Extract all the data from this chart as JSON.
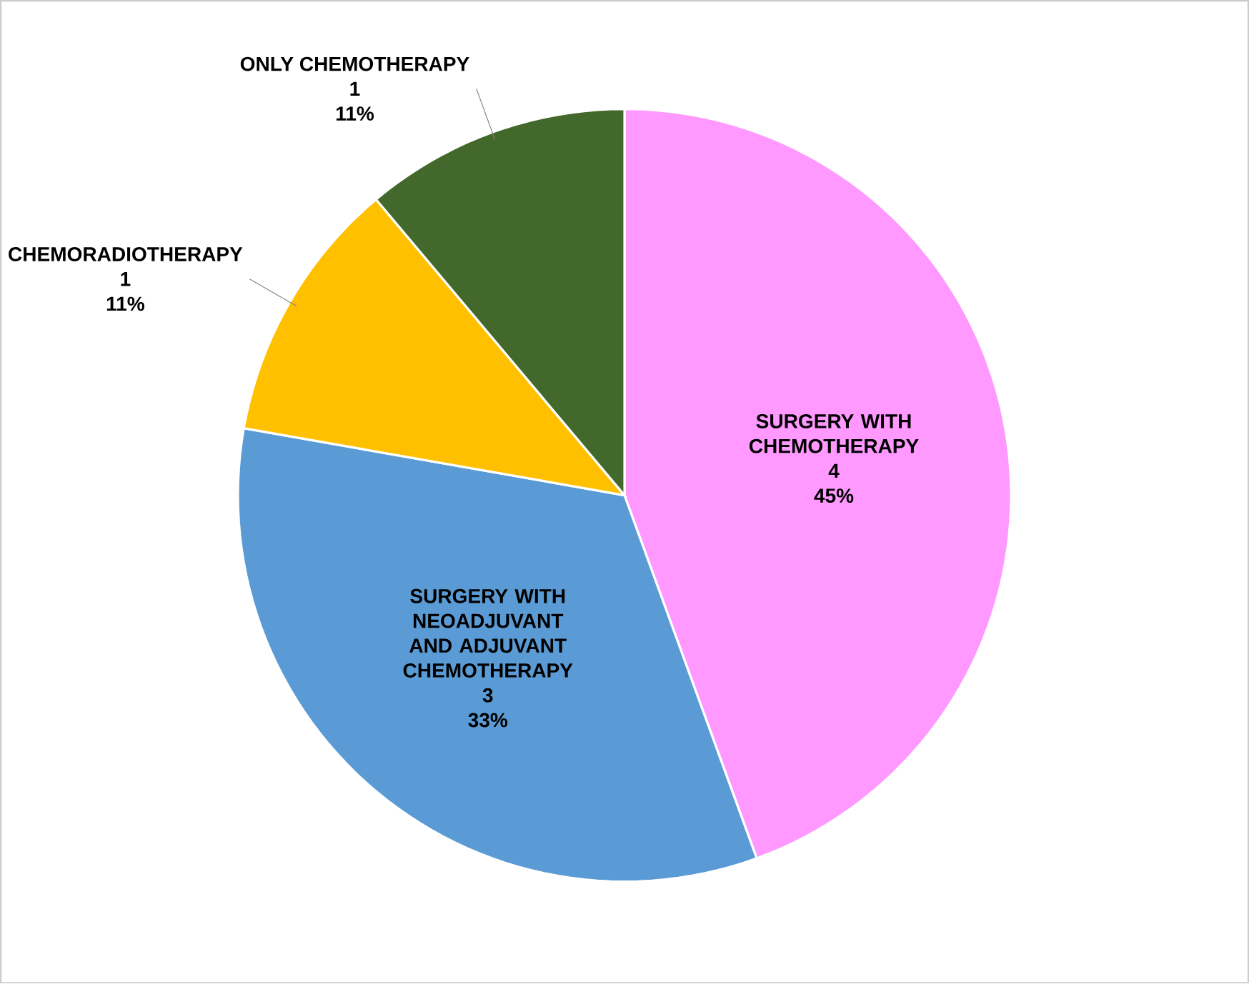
{
  "chart_data": {
    "type": "pie",
    "categories": [
      "SURGERY WITH CHEMOTHERAPY",
      "SURGERY WITH NEOADJUVANT AND ADJUVANT CHEMOTHERAPY",
      "CHEMORADIOTHERAPY",
      "ONLY CHEMOTHERAPY"
    ],
    "values": [
      4,
      3,
      1,
      1
    ],
    "annotations": [
      "45%",
      "33%",
      "11%",
      "11%"
    ],
    "colors": [
      "#ff99ff",
      "#5b9bd5",
      "#ffc000",
      "#43682b"
    ],
    "data_labels": true
  }
}
